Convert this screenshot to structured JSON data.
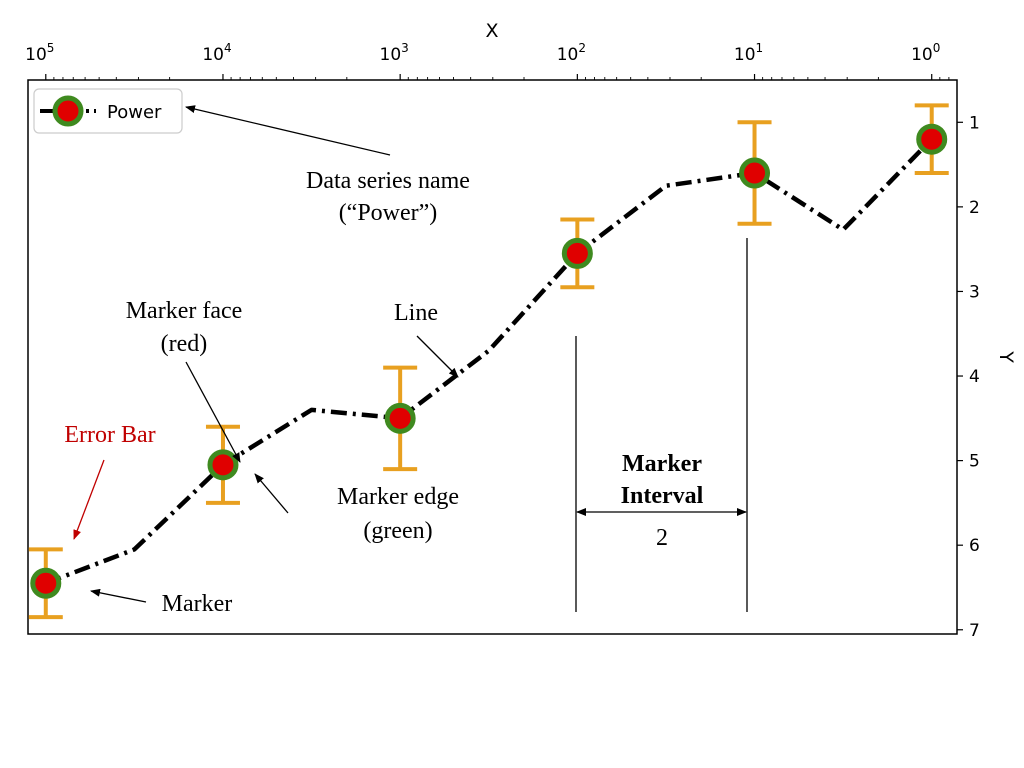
{
  "chart_data": {
    "type": "line",
    "xlabel": "X",
    "ylabel": "Y",
    "x_scale": "log",
    "x_inverted": true,
    "y_inverted": true,
    "xlim": [
      126000,
      0.72
    ],
    "ylim": [
      7.05,
      0.5
    ],
    "x_ticks": [
      {
        "value": 100000,
        "base": "10",
        "exp": "5"
      },
      {
        "value": 10000,
        "base": "10",
        "exp": "4"
      },
      {
        "value": 1000,
        "base": "10",
        "exp": "3"
      },
      {
        "value": 100,
        "base": "10",
        "exp": "2"
      },
      {
        "value": 10,
        "base": "10",
        "exp": "1"
      },
      {
        "value": 1,
        "base": "10",
        "exp": "0"
      }
    ],
    "y_ticks": [
      "1",
      "2",
      "3",
      "4",
      "5",
      "6",
      "7"
    ],
    "grid": false,
    "legend": {
      "position": "top-left",
      "entries": [
        "Power"
      ]
    },
    "series": [
      {
        "name": "Power",
        "line_style": "dash-dot",
        "line_color": "#000000",
        "marker_face_color": "#e00000",
        "marker_edge_color": "#3f8a1f",
        "errorbar_color": "#e8a020",
        "marker_every": 2,
        "points": [
          {
            "x": 100000,
            "y": 6.45,
            "yerr": 0.4
          },
          {
            "x": 31623,
            "y": 6.05,
            "yerr": null
          },
          {
            "x": 10000,
            "y": 5.05,
            "yerr": 0.45
          },
          {
            "x": 3162,
            "y": 4.4,
            "yerr": null
          },
          {
            "x": 1000,
            "y": 4.5,
            "yerr": 0.6
          },
          {
            "x": 316,
            "y": 3.7,
            "yerr": null
          },
          {
            "x": 100,
            "y": 2.55,
            "yerr": 0.4
          },
          {
            "x": 31.6,
            "y": 1.75,
            "yerr": null
          },
          {
            "x": 10,
            "y": 1.6,
            "yerr": 0.6
          },
          {
            "x": 3.16,
            "y": 2.27,
            "yerr": null
          },
          {
            "x": 1,
            "y": 1.2,
            "yerr": 0.4
          }
        ]
      }
    ],
    "annotations": {
      "series_name": [
        "Data series name",
        "(“Power”)"
      ],
      "line": "Line",
      "marker_face": [
        "Marker face",
        "(red)"
      ],
      "error_bar": "Error Bar",
      "marker_edge": [
        "Marker edge",
        "(green)"
      ],
      "marker": "Marker",
      "marker_interval": [
        "Marker",
        "Interval",
        "2"
      ]
    }
  }
}
